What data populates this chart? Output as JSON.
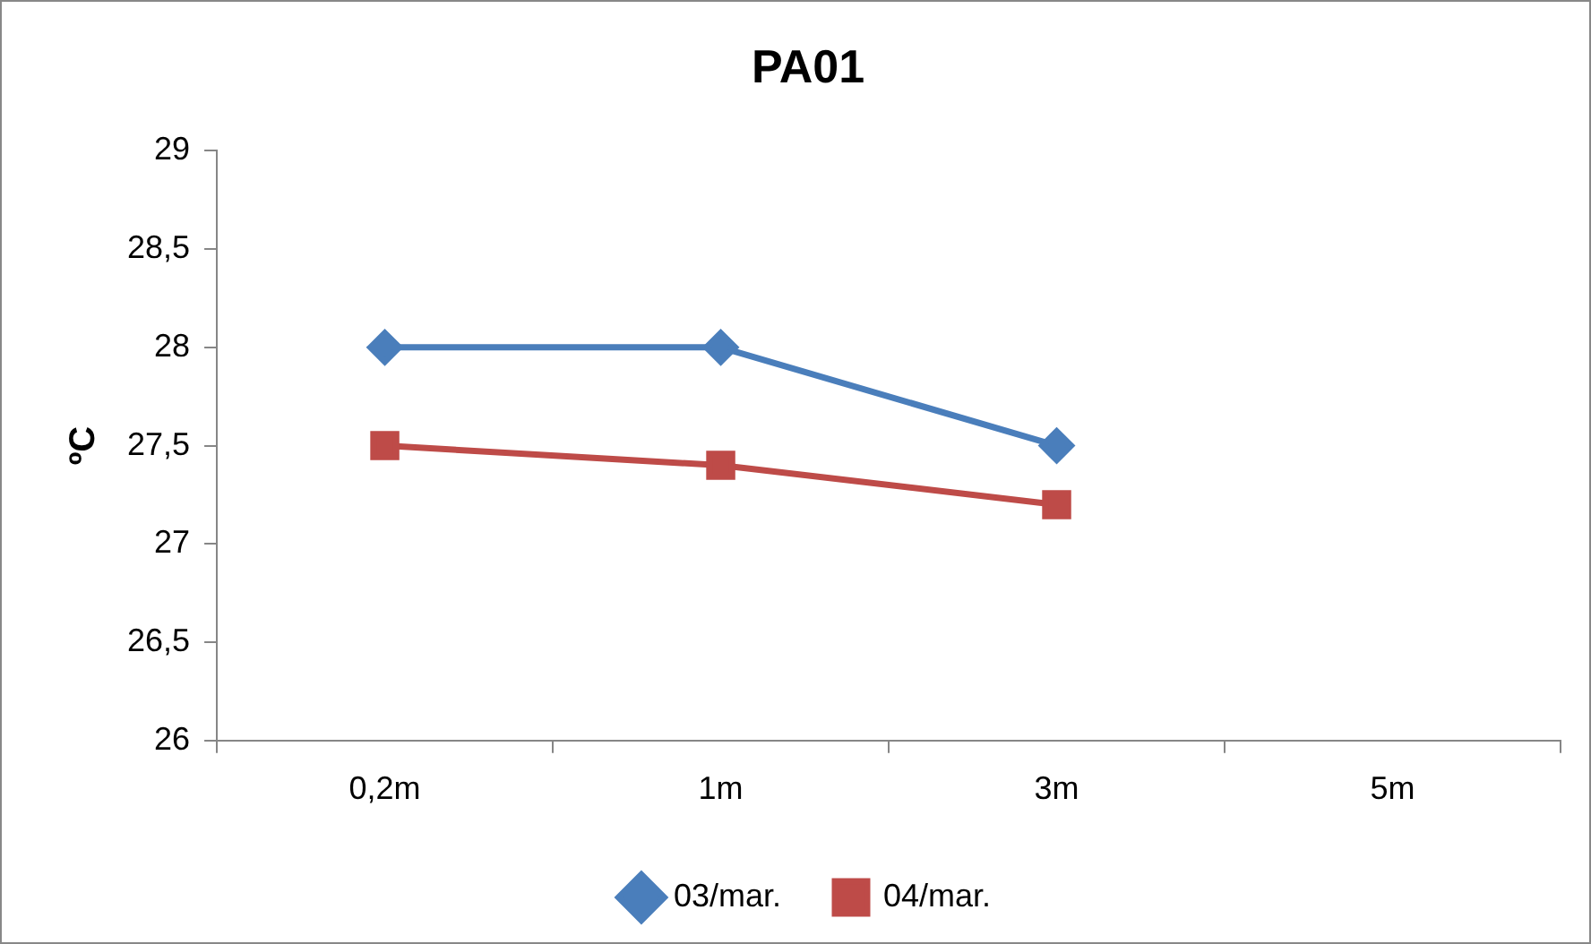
{
  "chart_data": {
    "type": "line",
    "title": "PA01",
    "ylabel": "ºC",
    "categories": [
      "0,2m",
      "1m",
      "3m",
      "5m"
    ],
    "series": [
      {
        "name": "03/mar.",
        "color": "#4a7ebb",
        "marker": "diamond",
        "values": [
          28,
          28,
          27.5,
          null
        ]
      },
      {
        "name": "04/mar.",
        "color": "#be4b48",
        "marker": "square",
        "values": [
          27.5,
          27.4,
          27.2,
          null
        ]
      }
    ],
    "ylim": [
      26,
      29
    ],
    "yticks": [
      26,
      {
        "value": 26.5,
        "label": "26,5"
      },
      27,
      {
        "value": 27.5,
        "label": "27,5"
      },
      28,
      {
        "value": 28.5,
        "label": "28,5"
      },
      29
    ],
    "legend": "bottom"
  }
}
